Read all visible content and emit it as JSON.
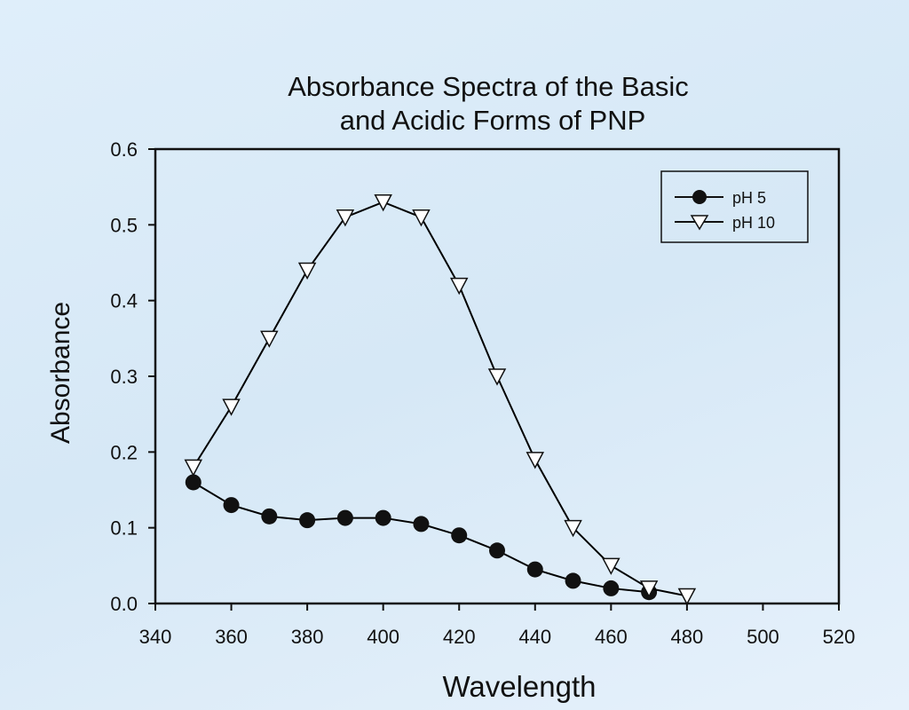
{
  "chart_data": {
    "type": "line",
    "title": [
      "Absorbance Spectra of the Basic",
      "and Acidic Forms of PNP"
    ],
    "xlabel": "Wavelength",
    "ylabel": "Absorbance",
    "xlim": [
      340,
      520
    ],
    "ylim": [
      0.0,
      0.6
    ],
    "xticks": [
      340,
      360,
      380,
      400,
      420,
      440,
      460,
      480,
      500,
      520
    ],
    "yticks": [
      "0.0",
      "0.1",
      "0.2",
      "0.3",
      "0.4",
      "0.5",
      "0.6"
    ],
    "grid": false,
    "legend_position": "top-right",
    "series": [
      {
        "name": "pH 5",
        "marker": "filled-circle",
        "color": "#000000",
        "x": [
          350,
          360,
          370,
          380,
          390,
          400,
          410,
          420,
          430,
          440,
          450,
          460,
          470
        ],
        "y": [
          0.16,
          0.13,
          0.115,
          0.11,
          0.113,
          0.113,
          0.105,
          0.09,
          0.07,
          0.045,
          0.03,
          0.02,
          0.015
        ]
      },
      {
        "name": "pH 10",
        "marker": "open-triangle-down",
        "color": "#000000",
        "x": [
          350,
          360,
          370,
          380,
          390,
          400,
          410,
          420,
          430,
          440,
          450,
          460,
          470,
          480
        ],
        "y": [
          0.18,
          0.26,
          0.35,
          0.44,
          0.51,
          0.53,
          0.51,
          0.42,
          0.3,
          0.19,
          0.1,
          0.05,
          0.02,
          0.01
        ]
      }
    ]
  }
}
